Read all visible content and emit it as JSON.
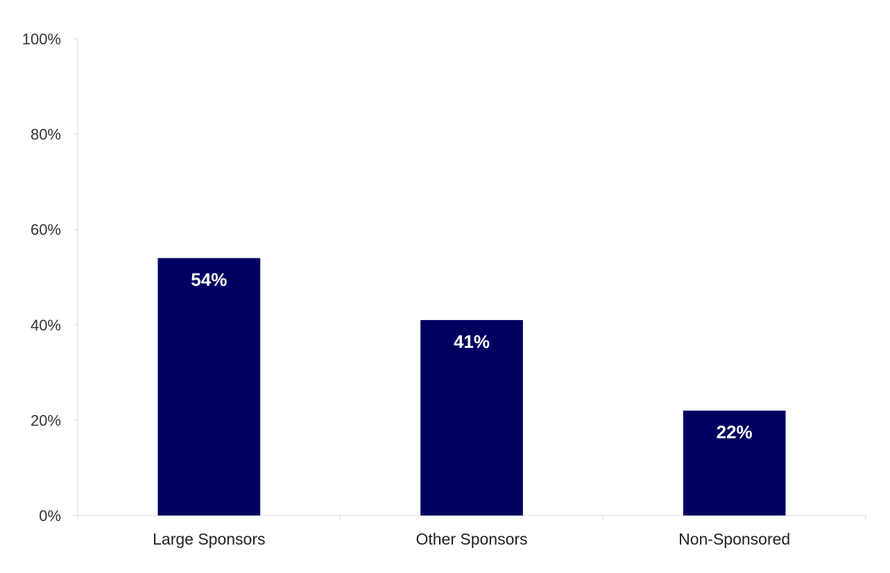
{
  "chart_data": {
    "type": "bar",
    "categories": [
      "Large Sponsors",
      "Other Sponsors",
      "Non-Sponsored"
    ],
    "values": [
      54,
      41,
      22
    ],
    "data_labels": [
      "54%",
      "41%",
      "22%"
    ],
    "title": "",
    "xlabel": "",
    "ylabel": "",
    "ylim": [
      0,
      100
    ],
    "yticks": [
      0,
      20,
      40,
      60,
      80,
      100
    ],
    "ytick_labels": [
      "0%",
      "20%",
      "40%",
      "60%",
      "80%",
      "100%"
    ],
    "grid": false,
    "legend": "none",
    "colors": {
      "bar": "#000060",
      "axis": "#d9d9d9",
      "data_label": "#ffffff"
    }
  }
}
